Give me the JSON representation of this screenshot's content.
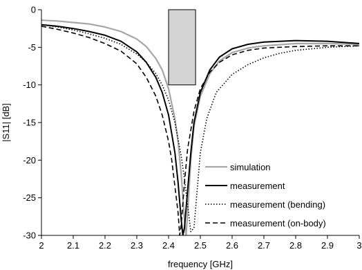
{
  "chart_data": {
    "type": "line",
    "title": "",
    "xlabel": "frequency [GHz]",
    "ylabel": "|S11| [dB]",
    "xlim": [
      2,
      3
    ],
    "ylim": [
      -30,
      0
    ],
    "xticks": [
      "2",
      "2.1",
      "2.2",
      "2.3",
      "2.4",
      "2.5",
      "2.6",
      "2.7",
      "2.8",
      "2.9",
      "3"
    ],
    "yticks": [
      "0",
      "-5",
      "-10",
      "-15",
      "-20",
      "-25",
      "-30"
    ],
    "grid": false,
    "legend_position": "bottom-right",
    "band_marker": {
      "x_start": 2.4,
      "x_end": 2.485,
      "y_top": 0,
      "y_bottom": -10,
      "fill": "#d4d4d4"
    },
    "series": [
      {
        "name": "simulation",
        "color": "#a6a6a6",
        "dash": "solid",
        "x": [
          2.0,
          2.05,
          2.1,
          2.15,
          2.2,
          2.25,
          2.3,
          2.33,
          2.36,
          2.38,
          2.4,
          2.42,
          2.43,
          2.44,
          2.45,
          2.455,
          2.46,
          2.47,
          2.48,
          2.5,
          2.53,
          2.56,
          2.6,
          2.65,
          2.7,
          2.8,
          2.9,
          3.0
        ],
        "y": [
          -1.4,
          -1.5,
          -1.7,
          -1.9,
          -2.3,
          -2.9,
          -3.9,
          -4.9,
          -6.5,
          -8.0,
          -10.5,
          -14.5,
          -17.5,
          -22.0,
          -28.0,
          -30.0,
          -27.0,
          -20.0,
          -15.5,
          -11.5,
          -8.5,
          -6.8,
          -5.7,
          -5.1,
          -4.8,
          -4.5,
          -4.5,
          -4.6
        ]
      },
      {
        "name": "measurement",
        "color": "#000000",
        "dash": "solid",
        "x": [
          2.0,
          2.05,
          2.1,
          2.15,
          2.2,
          2.25,
          2.3,
          2.33,
          2.36,
          2.38,
          2.4,
          2.42,
          2.43,
          2.44,
          2.445,
          2.45,
          2.46,
          2.47,
          2.48,
          2.5,
          2.53,
          2.56,
          2.6,
          2.65,
          2.7,
          2.8,
          2.9,
          3.0
        ],
        "y": [
          -2.0,
          -2.2,
          -2.5,
          -2.9,
          -3.4,
          -4.2,
          -5.6,
          -7.0,
          -9.0,
          -11.0,
          -14.0,
          -19.0,
          -23.0,
          -28.0,
          -30.0,
          -29.0,
          -24.0,
          -19.0,
          -15.0,
          -11.0,
          -8.0,
          -6.3,
          -5.2,
          -4.6,
          -4.3,
          -4.1,
          -4.2,
          -4.5
        ]
      },
      {
        "name": "measurement (bending)",
        "color": "#000000",
        "dash": "dotted",
        "x": [
          2.0,
          2.05,
          2.1,
          2.15,
          2.2,
          2.25,
          2.3,
          2.33,
          2.36,
          2.38,
          2.4,
          2.42,
          2.44,
          2.45,
          2.46,
          2.47,
          2.48,
          2.49,
          2.5,
          2.52,
          2.55,
          2.6,
          2.65,
          2.7,
          2.75,
          2.8,
          2.9,
          3.0
        ],
        "y": [
          -2.0,
          -2.3,
          -2.7,
          -3.2,
          -3.8,
          -4.6,
          -5.9,
          -7.0,
          -8.5,
          -10.0,
          -12.0,
          -15.0,
          -19.5,
          -22.5,
          -26.0,
          -29.5,
          -29.0,
          -24.0,
          -19.0,
          -14.5,
          -11.0,
          -8.6,
          -7.3,
          -6.4,
          -5.8,
          -5.4,
          -5.0,
          -4.8
        ]
      },
      {
        "name": "measurement (on-body)",
        "color": "#000000",
        "dash": "dashed",
        "x": [
          2.0,
          2.05,
          2.1,
          2.15,
          2.2,
          2.25,
          2.3,
          2.33,
          2.36,
          2.38,
          2.4,
          2.41,
          2.42,
          2.43,
          2.435,
          2.44,
          2.45,
          2.46,
          2.48,
          2.5,
          2.53,
          2.56,
          2.6,
          2.65,
          2.7,
          2.8,
          2.9,
          3.0
        ],
        "y": [
          -2.2,
          -2.6,
          -3.1,
          -3.7,
          -4.5,
          -5.5,
          -7.2,
          -9.0,
          -11.5,
          -14.0,
          -17.5,
          -20.0,
          -23.5,
          -27.0,
          -30.0,
          -28.5,
          -23.0,
          -18.5,
          -13.5,
          -10.5,
          -8.3,
          -7.0,
          -6.0,
          -5.4,
          -5.1,
          -4.9,
          -4.8,
          -4.8
        ]
      }
    ]
  }
}
